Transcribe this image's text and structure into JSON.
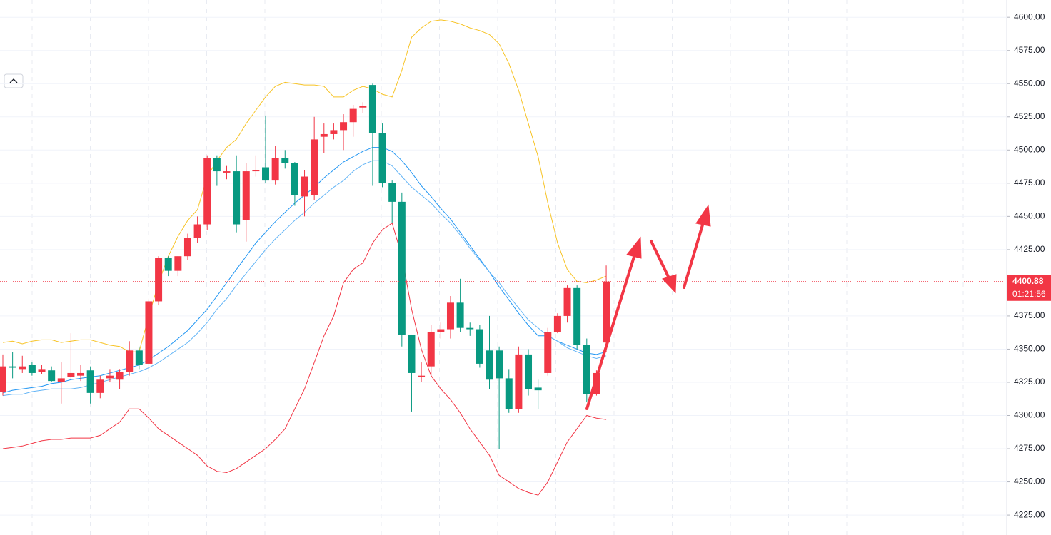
{
  "chart_data": {
    "type": "candlestick",
    "up_color": "#f23645",
    "down_color": "#089981",
    "open": [
      4318,
      4337,
      4335,
      4338,
      4333,
      4334,
      4325,
      4329,
      4330,
      4334,
      4317,
      4328,
      4327,
      4333,
      4349,
      4339,
      4386,
      4419,
      4409,
      4420,
      4434,
      4444,
      4494,
      4483,
      4484,
      4447,
      4484,
      4487,
      4477,
      4494,
      4490,
      4465,
      4466,
      4510,
      4512,
      4515,
      4521,
      4532,
      4549,
      4513,
      4475,
      4461,
      4361,
      4329,
      4337,
      4363,
      4365,
      4385,
      4366,
      4365,
      4349,
      4349,
      4328,
      4305,
      4346,
      4321,
      4332,
      4363,
      4375,
      4396,
      4353,
      4316,
      4355
    ],
    "high": [
      4346,
      4348,
      4345,
      4340,
      4338,
      4337,
      4340,
      4362,
      4338,
      4337,
      4330,
      4335,
      4335,
      4356,
      4352,
      4388,
      4420,
      4420,
      4420,
      4437,
      4450,
      4496,
      4496,
      4488,
      4496,
      4490,
      4496,
      4526,
      4503,
      4500,
      4491,
      4485,
      4525,
      4520,
      4520,
      4527,
      4534,
      4536,
      4550,
      4520,
      4477,
      4468,
      4361,
      4340,
      4368,
      4370,
      4390,
      4403,
      4370,
      4368,
      4375,
      4352,
      4335,
      4352,
      4350,
      4327,
      4366,
      4377,
      4398,
      4398,
      4358,
      4334,
      4413
    ],
    "low": [
      4315,
      4328,
      4332,
      4330,
      4331,
      4325,
      4309,
      4327,
      4326,
      4309,
      4313,
      4325,
      4320,
      4330,
      4335,
      4337,
      4383,
      4405,
      4405,
      4417,
      4430,
      4440,
      4473,
      4478,
      4438,
      4431,
      4480,
      4475,
      4474,
      4486,
      4458,
      4450,
      4462,
      4498,
      4508,
      4500,
      4510,
      4528,
      4473,
      4472,
      4445,
      4352,
      4303,
      4325,
      4330,
      4358,
      4358,
      4363,
      4360,
      4336,
      4320,
      4275,
      4302,
      4302,
      4315,
      4305,
      4330,
      4362,
      4370,
      4350,
      4310,
      4315,
      4348
    ],
    "close": [
      4337,
      4336,
      4337,
      4332,
      4335,
      4326,
      4328,
      4332,
      4332,
      4317,
      4327,
      4330,
      4333,
      4349,
      4338,
      4386,
      4419,
      4409,
      4420,
      4434,
      4444,
      4494,
      4484,
      4484,
      4444,
      4484,
      4485,
      4477,
      4494,
      4490,
      4466,
      4480,
      4508,
      4512,
      4515,
      4521,
      4531,
      4533,
      4513,
      4475,
      4461,
      4361,
      4332,
      4330,
      4363,
      4365,
      4385,
      4366,
      4365,
      4339,
      4327,
      4328,
      4305,
      4346,
      4320,
      4319,
      4363,
      4375,
      4396,
      4353,
      4316,
      4332,
      4400.88
    ],
    "lines": [
      {
        "color": "#f7c325",
        "values": [
          4355,
          4356,
          4354,
          4356,
          4357,
          4357,
          4355,
          4356,
          4357,
          4357,
          4355,
          4353,
          4352,
          4348,
          4348,
          4375,
          4400,
          4420,
          4435,
          4447,
          4455,
          4480,
          4492,
          4502,
          4508,
          4520,
          4530,
          4540,
          4548,
          4551,
          4550,
          4549,
          4549,
          4548,
          4540,
          4540,
          4545,
          4548,
          4546,
          4542,
          4540,
          4560,
          4585,
          4592,
          4597,
          4598,
          4597,
          4595,
          4592,
          4590,
          4587,
          4580,
          4565,
          4545,
          4520,
          4495,
          4460,
          4430,
          4410,
          4401,
          4400,
          4402,
          4405
        ]
      },
      {
        "color": "#f23645",
        "values": [
          4275,
          4276,
          4277,
          4279,
          4281,
          4282,
          4282,
          4283,
          4283,
          4283,
          4285,
          4290,
          4295,
          4305,
          4305,
          4298,
          4290,
          4285,
          4280,
          4275,
          4270,
          4262,
          4258,
          4257,
          4260,
          4265,
          4270,
          4275,
          4282,
          4290,
          4305,
          4320,
          4340,
          4360,
          4375,
          4400,
          4410,
          4415,
          4430,
          4440,
          4445,
          4420,
          4380,
          4350,
          4330,
          4320,
          4312,
          4302,
          4290,
          4280,
          4270,
          4255,
          4250,
          4245,
          4242,
          4240,
          4250,
          4265,
          4280,
          4290,
          4300,
          4298,
          4297
        ]
      },
      {
        "color": "#2196f3",
        "values": [
          4317,
          4319,
          4320,
          4321,
          4322,
          4324,
          4325,
          4327,
          4328,
          4329,
          4330,
          4332,
          4334,
          4336,
          4338,
          4342,
          4347,
          4352,
          4358,
          4364,
          4372,
          4380,
          4390,
          4400,
          4410,
          4420,
          4430,
          4438,
          4446,
          4453,
          4460,
          4466,
          4472,
          4479,
          4485,
          4491,
          4495,
          4499,
          4502,
          4502,
          4499,
          4492,
          4483,
          4473,
          4465,
          4456,
          4448,
          4438,
          4428,
          4418,
          4408,
          4397,
          4387,
          4377,
          4368,
          4360,
          4360,
          4356,
          4353,
          4350,
          4347,
          4346,
          4348
        ]
      },
      {
        "color": "#64b5f6",
        "values": [
          4315,
          4316,
          4316,
          4318,
          4319,
          4320,
          4320,
          4320,
          4321,
          4323,
          4325,
          4327,
          4329,
          4331,
          4333,
          4336,
          4340,
          4345,
          4350,
          4355,
          4362,
          4370,
          4380,
          4388,
          4398,
          4407,
          4416,
          4425,
          4433,
          4440,
          4447,
          4453,
          4460,
          4466,
          4472,
          4477,
          4484,
          4489,
          4492,
          4492,
          4488,
          4480,
          4472,
          4466,
          4460,
          4452,
          4445,
          4436,
          4426,
          4417,
          4408,
          4400,
          4390,
          4381,
          4372,
          4366,
          4360,
          4356,
          4351,
          4348,
          4345,
          4343,
          4345
        ]
      }
    ],
    "ylim": [
      4210,
      4613
    ],
    "yticks": [
      {
        "value": 4225,
        "label": "4225.00"
      },
      {
        "value": 4250,
        "label": "4250.00"
      },
      {
        "value": 4275,
        "label": "4275.00"
      },
      {
        "value": 4300,
        "label": "4300.00"
      },
      {
        "value": 4325,
        "label": "4325.00"
      },
      {
        "value": 4350,
        "label": "4350.00"
      },
      {
        "value": 4375,
        "label": "4375.00"
      },
      {
        "value": 4425,
        "label": "4425.00"
      },
      {
        "value": 4450,
        "label": "4450.00"
      },
      {
        "value": 4475,
        "label": "4475.00"
      },
      {
        "value": 4500,
        "label": "4500.00"
      },
      {
        "value": 4525,
        "label": "4525.00"
      },
      {
        "value": 4550,
        "label": "4550.00"
      },
      {
        "value": 4575,
        "label": "4575.00"
      },
      {
        "value": 4600,
        "label": "4600.00"
      }
    ],
    "last_price": {
      "value": 4400.88,
      "label": "4400.88"
    },
    "countdown": "01:21:56",
    "grid": true
  }
}
